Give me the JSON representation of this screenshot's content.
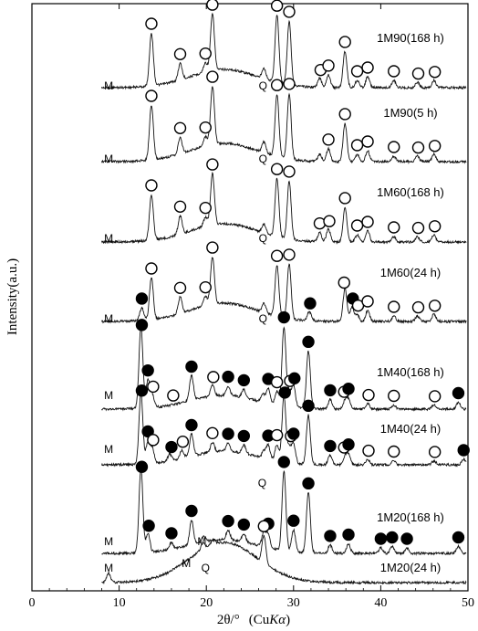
{
  "chart_data": {
    "type": "line",
    "xlabel_prefix": "2θ/°",
    "xlabel_unit_open": "(Cu",
    "xlabel_unit_italic": "Kα",
    "xlabel_unit_close": ")",
    "ylabel": "Intensity(a.u.)",
    "xlim": [
      0,
      50
    ],
    "x_ticks": [
      0,
      10,
      20,
      30,
      40,
      50
    ],
    "grid": false,
    "legend": "none",
    "line_color": "#111111",
    "series": [
      {
        "name": "1M90(168 h)",
        "baseline": 0.85,
        "background": 0.5,
        "scale": 1.0,
        "peaks": [
          [
            13.7,
            1.45
          ],
          [
            17.0,
            0.45
          ],
          [
            19.9,
            0.25
          ],
          [
            20.7,
            1.55
          ],
          [
            26.6,
            0.3
          ],
          [
            28.1,
            1.85
          ],
          [
            29.5,
            1.75
          ],
          [
            33.0,
            0.25
          ],
          [
            34.0,
            0.35
          ],
          [
            35.9,
            1.0
          ],
          [
            37.3,
            0.2
          ],
          [
            38.5,
            0.3
          ],
          [
            41.5,
            0.2
          ],
          [
            44.2,
            0.15
          ],
          [
            46.1,
            0.2
          ]
        ],
        "markers": [
          {
            "x": 13.7,
            "type": "open"
          },
          {
            "x": 17.0,
            "type": "open"
          },
          {
            "x": 19.9,
            "type": "open"
          },
          {
            "x": 20.7,
            "type": "open"
          },
          {
            "x": 28.1,
            "type": "open"
          },
          {
            "x": 29.5,
            "type": "open"
          },
          {
            "x": 33.1,
            "type": "open"
          },
          {
            "x": 34.0,
            "type": "open"
          },
          {
            "x": 35.9,
            "type": "open"
          },
          {
            "x": 37.3,
            "type": "open"
          },
          {
            "x": 38.5,
            "type": "open"
          },
          {
            "x": 41.5,
            "type": "open"
          },
          {
            "x": 44.3,
            "type": "open"
          },
          {
            "x": 46.2,
            "type": "open"
          }
        ],
        "text_markers": [
          {
            "x": 8.8,
            "label": "M"
          },
          {
            "x": 26.5,
            "label": "Q"
          }
        ]
      },
      {
        "name": "1M90(5 h)",
        "baseline": 0.85,
        "background": 0.5,
        "scale": 1.0,
        "peaks": [
          [
            13.7,
            1.5
          ],
          [
            17.0,
            0.45
          ],
          [
            19.9,
            0.25
          ],
          [
            20.7,
            1.6
          ],
          [
            26.6,
            0.3
          ],
          [
            28.1,
            1.7
          ],
          [
            29.5,
            1.8
          ],
          [
            33.0,
            0.2
          ],
          [
            34.0,
            0.35
          ],
          [
            35.9,
            1.05
          ],
          [
            37.3,
            0.2
          ],
          [
            38.5,
            0.3
          ],
          [
            41.5,
            0.15
          ],
          [
            44.2,
            0.15
          ],
          [
            46.1,
            0.2
          ]
        ],
        "markers": [
          {
            "x": 13.7,
            "type": "open"
          },
          {
            "x": 17.0,
            "type": "open"
          },
          {
            "x": 19.9,
            "type": "open"
          },
          {
            "x": 20.7,
            "type": "open"
          },
          {
            "x": 28.1,
            "type": "open"
          },
          {
            "x": 29.5,
            "type": "open"
          },
          {
            "x": 34.0,
            "type": "open"
          },
          {
            "x": 35.9,
            "type": "open"
          },
          {
            "x": 37.3,
            "type": "open"
          },
          {
            "x": 38.5,
            "type": "open"
          },
          {
            "x": 41.5,
            "type": "open"
          },
          {
            "x": 44.3,
            "type": "open"
          },
          {
            "x": 46.2,
            "type": "open"
          }
        ],
        "text_markers": [
          {
            "x": 8.8,
            "label": "M"
          },
          {
            "x": 26.5,
            "label": "Q"
          }
        ]
      },
      {
        "name": "1M60(168 h)",
        "baseline": 0.85,
        "background": 0.5,
        "scale": 1.0,
        "peaks": [
          [
            13.7,
            1.25
          ],
          [
            17.0,
            0.5
          ],
          [
            19.9,
            0.25
          ],
          [
            20.7,
            1.4
          ],
          [
            26.6,
            0.25
          ],
          [
            28.1,
            1.6
          ],
          [
            29.5,
            1.6
          ],
          [
            33.0,
            0.25
          ],
          [
            34.0,
            0.35
          ],
          [
            35.9,
            0.95
          ],
          [
            37.3,
            0.2
          ],
          [
            38.5,
            0.3
          ],
          [
            41.5,
            0.15
          ],
          [
            44.2,
            0.15
          ],
          [
            46.1,
            0.2
          ]
        ],
        "markers": [
          {
            "x": 13.7,
            "type": "open"
          },
          {
            "x": 17.0,
            "type": "open"
          },
          {
            "x": 19.9,
            "type": "open"
          },
          {
            "x": 20.7,
            "type": "open"
          },
          {
            "x": 28.1,
            "type": "open"
          },
          {
            "x": 29.5,
            "type": "open"
          },
          {
            "x": 33.0,
            "type": "open"
          },
          {
            "x": 34.1,
            "type": "open"
          },
          {
            "x": 35.9,
            "type": "open"
          },
          {
            "x": 37.3,
            "type": "open"
          },
          {
            "x": 38.5,
            "type": "open"
          },
          {
            "x": 41.5,
            "type": "open"
          },
          {
            "x": 44.3,
            "type": "open"
          },
          {
            "x": 46.2,
            "type": "open"
          }
        ],
        "text_markers": [
          {
            "x": 8.8,
            "label": "M"
          },
          {
            "x": 26.5,
            "label": "Q"
          }
        ]
      },
      {
        "name": "1M60(24 h)",
        "baseline": 0.85,
        "background": 0.5,
        "scale": 1.0,
        "peaks": [
          [
            12.6,
            0.35
          ],
          [
            13.7,
            1.15
          ],
          [
            17.0,
            0.45
          ],
          [
            19.9,
            0.25
          ],
          [
            20.7,
            1.3
          ],
          [
            26.6,
            0.25
          ],
          [
            28.1,
            1.4
          ],
          [
            29.5,
            1.5
          ],
          [
            31.8,
            0.25
          ],
          [
            35.9,
            0.9
          ],
          [
            36.7,
            0.4
          ],
          [
            37.3,
            0.2
          ],
          [
            38.5,
            0.3
          ],
          [
            41.5,
            0.15
          ],
          [
            44.2,
            0.15
          ],
          [
            46.1,
            0.2
          ]
        ],
        "markers": [
          {
            "x": 12.6,
            "type": "filled"
          },
          {
            "x": 13.7,
            "type": "open"
          },
          {
            "x": 17.0,
            "type": "open"
          },
          {
            "x": 19.9,
            "type": "open"
          },
          {
            "x": 20.7,
            "type": "open"
          },
          {
            "x": 28.1,
            "type": "open"
          },
          {
            "x": 29.5,
            "type": "open"
          },
          {
            "x": 31.9,
            "type": "filled"
          },
          {
            "x": 35.8,
            "type": "open"
          },
          {
            "x": 36.8,
            "type": "filled"
          },
          {
            "x": 37.4,
            "type": "open"
          },
          {
            "x": 38.5,
            "type": "open"
          },
          {
            "x": 41.5,
            "type": "open"
          },
          {
            "x": 44.3,
            "type": "open"
          },
          {
            "x": 46.2,
            "type": "open"
          }
        ],
        "text_markers": [
          {
            "x": 8.8,
            "label": "M"
          },
          {
            "x": 26.5,
            "label": "Q"
          }
        ]
      },
      {
        "name": "1M40(168 h)",
        "baseline": 0.85,
        "background": 0.5,
        "scale": 0.75,
        "peaks": [
          [
            12.5,
            3.0
          ],
          [
            13.3,
            1.0
          ],
          [
            13.8,
            0.45
          ],
          [
            18.3,
            0.9
          ],
          [
            20.7,
            0.4
          ],
          [
            22.5,
            0.35
          ],
          [
            24.3,
            0.3
          ],
          [
            26.5,
            0.3
          ],
          [
            27.1,
            0.55
          ],
          [
            28.1,
            0.5
          ],
          [
            28.9,
            2.9
          ],
          [
            29.5,
            0.5
          ],
          [
            30.0,
            0.8
          ],
          [
            31.7,
            2.1
          ],
          [
            34.2,
            0.35
          ],
          [
            35.9,
            0.3
          ],
          [
            36.3,
            0.35
          ],
          [
            38.5,
            0.2
          ],
          [
            41.5,
            0.15
          ],
          [
            46.1,
            0.15
          ],
          [
            48.9,
            0.25
          ]
        ],
        "markers": [
          {
            "x": 12.6,
            "type": "filled"
          },
          {
            "x": 13.3,
            "type": "filled"
          },
          {
            "x": 13.9,
            "type": "open"
          },
          {
            "x": 16.2,
            "type": "open"
          },
          {
            "x": 18.3,
            "type": "filled"
          },
          {
            "x": 20.8,
            "type": "open"
          },
          {
            "x": 22.5,
            "type": "filled"
          },
          {
            "x": 24.3,
            "type": "filled"
          },
          {
            "x": 27.1,
            "type": "filled"
          },
          {
            "x": 28.1,
            "type": "open"
          },
          {
            "x": 28.9,
            "type": "filled"
          },
          {
            "x": 29.6,
            "type": "open"
          },
          {
            "x": 30.1,
            "type": "filled"
          },
          {
            "x": 31.7,
            "type": "filled"
          },
          {
            "x": 34.2,
            "type": "filled"
          },
          {
            "x": 35.8,
            "type": "open"
          },
          {
            "x": 36.3,
            "type": "filled"
          },
          {
            "x": 38.6,
            "type": "open"
          },
          {
            "x": 41.5,
            "type": "open"
          },
          {
            "x": 46.2,
            "type": "open"
          },
          {
            "x": 48.9,
            "type": "filled"
          }
        ],
        "text_markers": [
          {
            "x": 8.8,
            "label": "M"
          }
        ]
      },
      {
        "name": "1M40(24 h)",
        "baseline": 0.85,
        "background": 0.5,
        "scale": 0.75,
        "peaks": [
          [
            12.5,
            2.6
          ],
          [
            13.3,
            0.8
          ],
          [
            13.8,
            0.55
          ],
          [
            15.8,
            0.25
          ],
          [
            17.2,
            0.3
          ],
          [
            18.3,
            0.8
          ],
          [
            20.7,
            0.35
          ],
          [
            22.5,
            0.3
          ],
          [
            24.3,
            0.3
          ],
          [
            26.6,
            0.25
          ],
          [
            27.1,
            0.5
          ],
          [
            28.1,
            0.6
          ],
          [
            28.9,
            2.4
          ],
          [
            29.5,
            0.55
          ],
          [
            30.0,
            0.7
          ],
          [
            31.7,
            1.8
          ],
          [
            34.2,
            0.35
          ],
          [
            35.9,
            0.3
          ],
          [
            36.3,
            0.35
          ],
          [
            38.5,
            0.2
          ],
          [
            41.5,
            0.15
          ],
          [
            46.1,
            0.15
          ],
          [
            49.5,
            0.2
          ]
        ],
        "markers": [
          {
            "x": 12.6,
            "type": "filled"
          },
          {
            "x": 13.3,
            "type": "filled"
          },
          {
            "x": 13.9,
            "type": "open"
          },
          {
            "x": 16.0,
            "type": "filled"
          },
          {
            "x": 17.3,
            "type": "open"
          },
          {
            "x": 18.3,
            "type": "filled"
          },
          {
            "x": 20.7,
            "type": "open"
          },
          {
            "x": 22.5,
            "type": "filled"
          },
          {
            "x": 24.3,
            "type": "filled"
          },
          {
            "x": 27.1,
            "type": "filled"
          },
          {
            "x": 28.1,
            "type": "open"
          },
          {
            "x": 29.0,
            "type": "filled"
          },
          {
            "x": 29.7,
            "type": "open"
          },
          {
            "x": 30.0,
            "type": "filled"
          },
          {
            "x": 31.7,
            "type": "filled"
          },
          {
            "x": 34.2,
            "type": "filled"
          },
          {
            "x": 35.8,
            "type": "open"
          },
          {
            "x": 36.3,
            "type": "filled"
          },
          {
            "x": 38.6,
            "type": "open"
          },
          {
            "x": 41.5,
            "type": "open"
          },
          {
            "x": 46.2,
            "type": "open"
          },
          {
            "x": 49.5,
            "type": "filled"
          }
        ],
        "text_markers": [
          {
            "x": 8.8,
            "label": "M"
          }
        ]
      },
      {
        "name": "1M20(168 h)",
        "baseline": 0.85,
        "background": 0.5,
        "scale": 0.75,
        "peaks": [
          [
            12.5,
            3.1
          ],
          [
            13.3,
            0.7
          ],
          [
            16.0,
            0.25
          ],
          [
            18.3,
            0.9
          ],
          [
            19.7,
            0.2
          ],
          [
            22.5,
            0.35
          ],
          [
            24.3,
            0.3
          ],
          [
            26.6,
            0.55
          ],
          [
            27.1,
            0.5
          ],
          [
            28.9,
            2.9
          ],
          [
            30.0,
            0.8
          ],
          [
            31.7,
            2.2
          ],
          [
            34.2,
            0.3
          ],
          [
            36.3,
            0.35
          ],
          [
            40.0,
            0.2
          ],
          [
            41.3,
            0.25
          ],
          [
            43.0,
            0.2
          ],
          [
            48.9,
            0.25
          ]
        ],
        "markers": [
          {
            "x": 12.6,
            "type": "filled"
          },
          {
            "x": 13.4,
            "type": "filled"
          },
          {
            "x": 16.0,
            "type": "filled"
          },
          {
            "x": 18.3,
            "type": "filled"
          },
          {
            "x": 22.5,
            "type": "filled"
          },
          {
            "x": 24.3,
            "type": "filled"
          },
          {
            "x": 27.1,
            "type": "filled"
          },
          {
            "x": 28.9,
            "type": "filled"
          },
          {
            "x": 30.0,
            "type": "filled"
          },
          {
            "x": 31.7,
            "type": "filled"
          },
          {
            "x": 34.2,
            "type": "filled"
          },
          {
            "x": 36.3,
            "type": "filled"
          },
          {
            "x": 40.0,
            "type": "filled"
          },
          {
            "x": 41.3,
            "type": "filled"
          },
          {
            "x": 43.0,
            "type": "filled"
          },
          {
            "x": 48.9,
            "type": "filled"
          }
        ],
        "text_markers": [
          {
            "x": 8.8,
            "label": "M"
          },
          {
            "x": 19.5,
            "label": "M"
          },
          {
            "x": 26.4,
            "label": "Q"
          }
        ]
      },
      {
        "name": "1M20(24 h)",
        "baseline": 0.85,
        "background": 1.1,
        "scale": 1.0,
        "peaks": [
          [
            8.8,
            0.25
          ],
          [
            19.6,
            0.2
          ],
          [
            20.8,
            0.15
          ],
          [
            26.6,
            0.75
          ]
        ],
        "markers": [
          {
            "x": 26.6,
            "type": "open"
          }
        ],
        "text_markers": [
          {
            "x": 8.8,
            "label": "M"
          },
          {
            "x": 17.7,
            "label": "M"
          },
          {
            "x": 19.9,
            "label": "Q"
          }
        ]
      }
    ]
  }
}
